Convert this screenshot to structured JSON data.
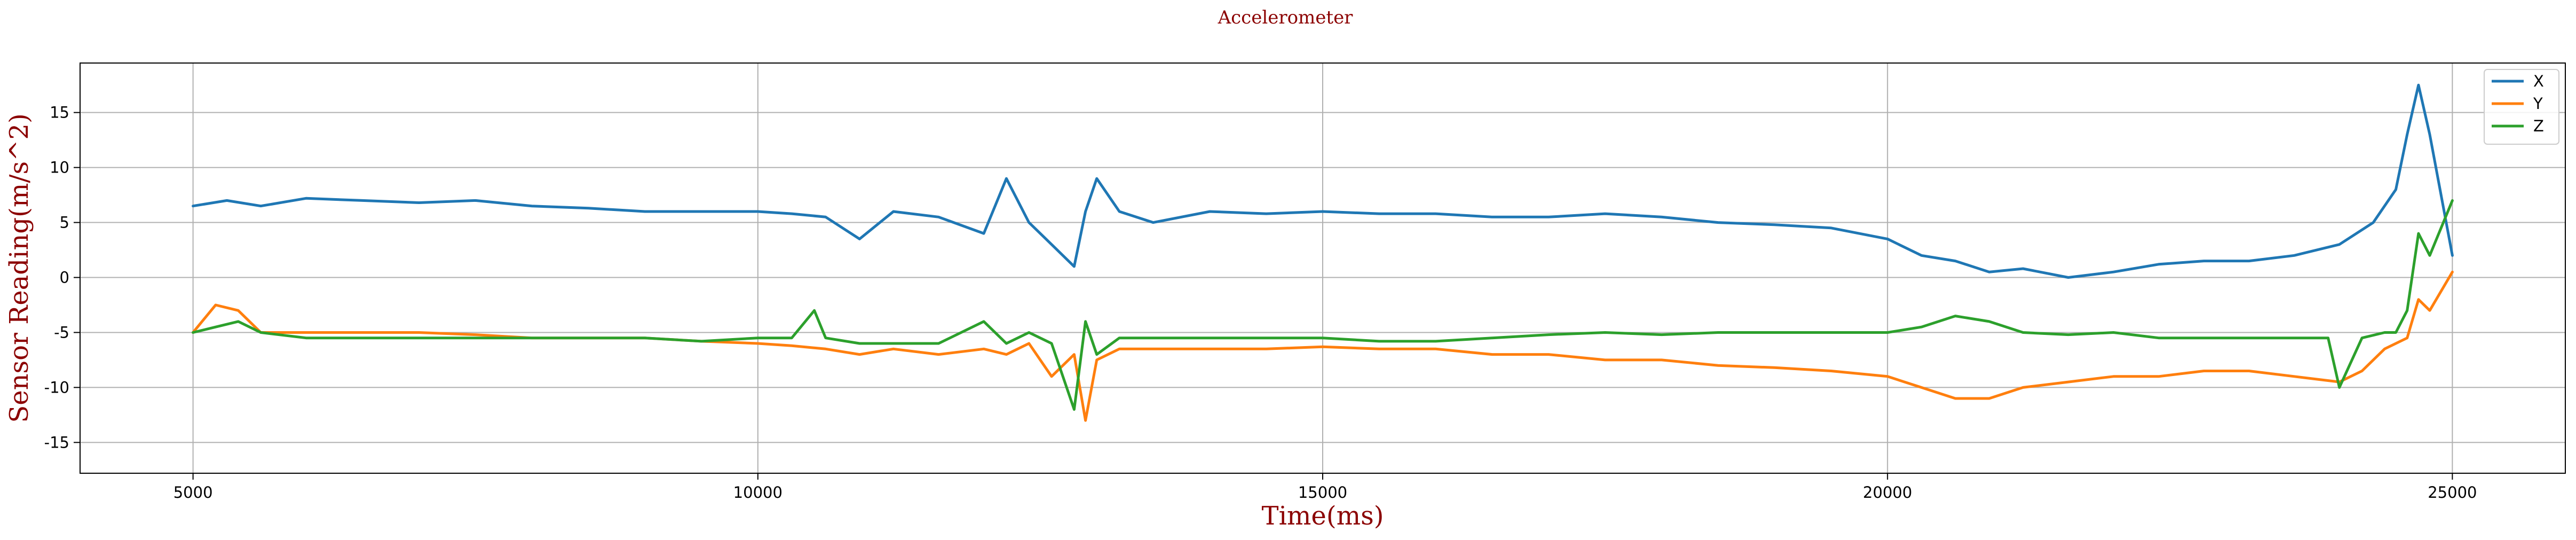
{
  "chart_data": {
    "type": "line",
    "title": "Accelerometer",
    "xlabel": "Time(ms)",
    "ylabel": "Sensor Reading(m/s^2)",
    "xlim": [
      4000,
      26000
    ],
    "ylim": [
      -17.8,
      19.5
    ],
    "xticks": [
      5000,
      10000,
      15000,
      20000,
      25000
    ],
    "yticks": [
      -15,
      -10,
      -5,
      0,
      5,
      10,
      15
    ],
    "grid": true,
    "legend_position": "top-right",
    "series": [
      {
        "name": "X",
        "color": "#1f77b4",
        "x": [
          5000,
          5300,
          5600,
          6000,
          6500,
          7000,
          7500,
          8000,
          8500,
          9000,
          9500,
          10000,
          10300,
          10600,
          10900,
          11200,
          11600,
          12000,
          12200,
          12400,
          12600,
          12800,
          12900,
          13000,
          13200,
          13500,
          14000,
          14500,
          15000,
          15500,
          16000,
          16500,
          17000,
          17500,
          18000,
          18500,
          19000,
          19500,
          20000,
          20300,
          20600,
          20900,
          21200,
          21600,
          22000,
          22400,
          22800,
          23200,
          23600,
          24000,
          24300,
          24500,
          24600,
          24700,
          24800,
          25000
        ],
        "y": [
          6.5,
          7.0,
          6.5,
          7.2,
          7.0,
          6.8,
          7.0,
          6.5,
          6.3,
          6.0,
          6.0,
          6.0,
          5.8,
          5.5,
          3.5,
          6.0,
          5.5,
          4.0,
          9.0,
          5.0,
          3.0,
          1.0,
          6.0,
          9.0,
          6.0,
          5.0,
          6.0,
          5.8,
          6.0,
          5.8,
          5.8,
          5.5,
          5.5,
          5.8,
          5.5,
          5.0,
          4.8,
          4.5,
          3.5,
          2.0,
          1.5,
          0.5,
          0.8,
          0.0,
          0.5,
          1.2,
          1.5,
          1.5,
          2.0,
          3.0,
          5.0,
          8.0,
          13.0,
          17.5,
          13.0,
          2.0
        ]
      },
      {
        "name": "Y",
        "color": "#ff7f0e",
        "x": [
          5000,
          5200,
          5400,
          5600,
          6000,
          6500,
          7000,
          7500,
          8000,
          8500,
          9000,
          9500,
          10000,
          10300,
          10600,
          10900,
          11200,
          11600,
          12000,
          12200,
          12400,
          12600,
          12800,
          12900,
          13000,
          13200,
          13500,
          14000,
          14500,
          15000,
          15500,
          16000,
          16500,
          17000,
          17500,
          18000,
          18500,
          19000,
          19500,
          20000,
          20300,
          20600,
          20900,
          21200,
          21600,
          22000,
          22400,
          22800,
          23200,
          23600,
          24000,
          24200,
          24400,
          24600,
          24700,
          24800,
          25000
        ],
        "y": [
          -5.0,
          -2.5,
          -3.0,
          -5.0,
          -5.0,
          -5.0,
          -5.0,
          -5.2,
          -5.5,
          -5.5,
          -5.5,
          -5.8,
          -6.0,
          -6.2,
          -6.5,
          -7.0,
          -6.5,
          -7.0,
          -6.5,
          -7.0,
          -6.0,
          -9.0,
          -7.0,
          -13.0,
          -7.5,
          -6.5,
          -6.5,
          -6.5,
          -6.5,
          -6.3,
          -6.5,
          -6.5,
          -7.0,
          -7.0,
          -7.5,
          -7.5,
          -8.0,
          -8.2,
          -8.5,
          -9.0,
          -10.0,
          -11.0,
          -11.0,
          -10.0,
          -9.5,
          -9.0,
          -9.0,
          -8.5,
          -8.5,
          -9.0,
          -9.5,
          -8.5,
          -6.5,
          -5.5,
          -2.0,
          -3.0,
          0.5
        ]
      },
      {
        "name": "Z",
        "color": "#2ca02c",
        "x": [
          5000,
          5200,
          5400,
          5600,
          6000,
          6500,
          7000,
          7500,
          8000,
          8500,
          9000,
          9500,
          10000,
          10300,
          10500,
          10600,
          10900,
          11200,
          11600,
          12000,
          12200,
          12400,
          12600,
          12800,
          12900,
          13000,
          13200,
          13500,
          14000,
          14500,
          15000,
          15500,
          16000,
          16500,
          17000,
          17500,
          18000,
          18500,
          19000,
          19500,
          20000,
          20300,
          20600,
          20900,
          21200,
          21600,
          22000,
          22400,
          22800,
          23200,
          23600,
          23900,
          24000,
          24200,
          24400,
          24500,
          24600,
          24700,
          24800,
          25000
        ],
        "y": [
          -5.0,
          -4.5,
          -4.0,
          -5.0,
          -5.5,
          -5.5,
          -5.5,
          -5.5,
          -5.5,
          -5.5,
          -5.5,
          -5.8,
          -5.5,
          -5.5,
          -3.0,
          -5.5,
          -6.0,
          -6.0,
          -6.0,
          -4.0,
          -6.0,
          -5.0,
          -6.0,
          -12.0,
          -4.0,
          -7.0,
          -5.5,
          -5.5,
          -5.5,
          -5.5,
          -5.5,
          -5.8,
          -5.8,
          -5.5,
          -5.2,
          -5.0,
          -5.2,
          -5.0,
          -5.0,
          -5.0,
          -5.0,
          -4.5,
          -3.5,
          -4.0,
          -5.0,
          -5.2,
          -5.0,
          -5.5,
          -5.5,
          -5.5,
          -5.5,
          -5.5,
          -10.0,
          -5.5,
          -5.0,
          -5.0,
          -3.0,
          4.0,
          2.0,
          7.0
        ]
      }
    ]
  }
}
